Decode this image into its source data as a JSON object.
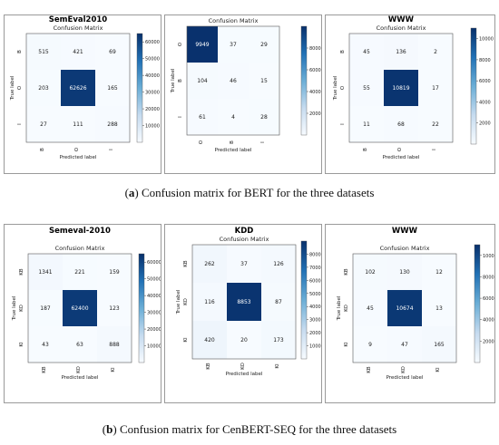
{
  "captions": [
    {
      "letter": "a",
      "text": "Confusion matrix for BERT for the three datasets"
    },
    {
      "letter": "b",
      "text": "Confusion matrix for CenBERT-SEQ for the three datasets"
    }
  ],
  "chart_data": [
    {
      "type": "heatmap",
      "dataset_title": "SemEval2010",
      "title": "Confusion Matrix",
      "xlabel": "Predicted label",
      "ylabel": "True label",
      "labels": [
        "B",
        "O",
        "I"
      ],
      "matrix": [
        [
          515,
          421,
          69
        ],
        [
          203,
          62626,
          165
        ],
        [
          27,
          111,
          288
        ]
      ],
      "colorbar": {
        "min": 0,
        "max": 65000,
        "ticks": [
          10000,
          20000,
          30000,
          40000,
          50000,
          60000
        ]
      }
    },
    {
      "type": "heatmap",
      "dataset_title": "KDD",
      "title": "Confusion Matrix",
      "xlabel": "Predicted label",
      "ylabel": "True label",
      "labels": [
        "O",
        "B",
        "I"
      ],
      "matrix": [
        [
          9949,
          37,
          29
        ],
        [
          104,
          46,
          15
        ],
        [
          61,
          4,
          28
        ]
      ],
      "colorbar": {
        "min": 0,
        "max": 10000,
        "ticks": [
          2000,
          4000,
          6000,
          8000
        ]
      }
    },
    {
      "type": "heatmap",
      "dataset_title": "WWW",
      "title": "Confusion Matrix",
      "xlabel": "Predicted label",
      "ylabel": "True label",
      "labels": [
        "B",
        "O",
        "I"
      ],
      "matrix": [
        [
          45,
          136,
          2
        ],
        [
          55,
          10819,
          17
        ],
        [
          11,
          68,
          22
        ]
      ],
      "colorbar": {
        "min": 0,
        "max": 11000,
        "ticks": [
          2000,
          4000,
          6000,
          8000,
          10000
        ]
      }
    },
    {
      "type": "heatmap",
      "dataset_title": "Semeval-2010",
      "title": "Confusion Matrix",
      "xlabel": "Predicted label",
      "ylabel": "True label",
      "labels": [
        "KB",
        "KO",
        "KI"
      ],
      "matrix": [
        [
          1341,
          221,
          159
        ],
        [
          187,
          62400,
          123
        ],
        [
          43,
          63,
          888
        ]
      ],
      "colorbar": {
        "min": 0,
        "max": 65000,
        "ticks": [
          10000,
          20000,
          30000,
          40000,
          50000,
          60000
        ]
      }
    },
    {
      "type": "heatmap",
      "dataset_title": "KDD",
      "title": "Confusion Matrix",
      "xlabel": "Predicted label",
      "ylabel": "True label",
      "labels": [
        "KB",
        "KO",
        "KI"
      ],
      "matrix": [
        [
          262,
          37,
          126
        ],
        [
          116,
          8853,
          87
        ],
        [
          420,
          20,
          173
        ]
      ],
      "colorbar": {
        "min": 0,
        "max": 9000,
        "ticks": [
          1000,
          2000,
          3000,
          4000,
          5000,
          6000,
          7000,
          8000
        ]
      }
    },
    {
      "type": "heatmap",
      "dataset_title": "WWW",
      "title": "Confusion Matrix",
      "xlabel": "Predicted label",
      "ylabel": "True label",
      "labels": [
        "KB",
        "KO",
        "KI"
      ],
      "matrix": [
        [
          102,
          130,
          12
        ],
        [
          45,
          10674,
          13
        ],
        [
          9,
          47,
          165
        ]
      ],
      "colorbar": {
        "min": 0,
        "max": 11000,
        "ticks": [
          2000,
          4000,
          6000,
          8000,
          10000
        ]
      }
    }
  ]
}
